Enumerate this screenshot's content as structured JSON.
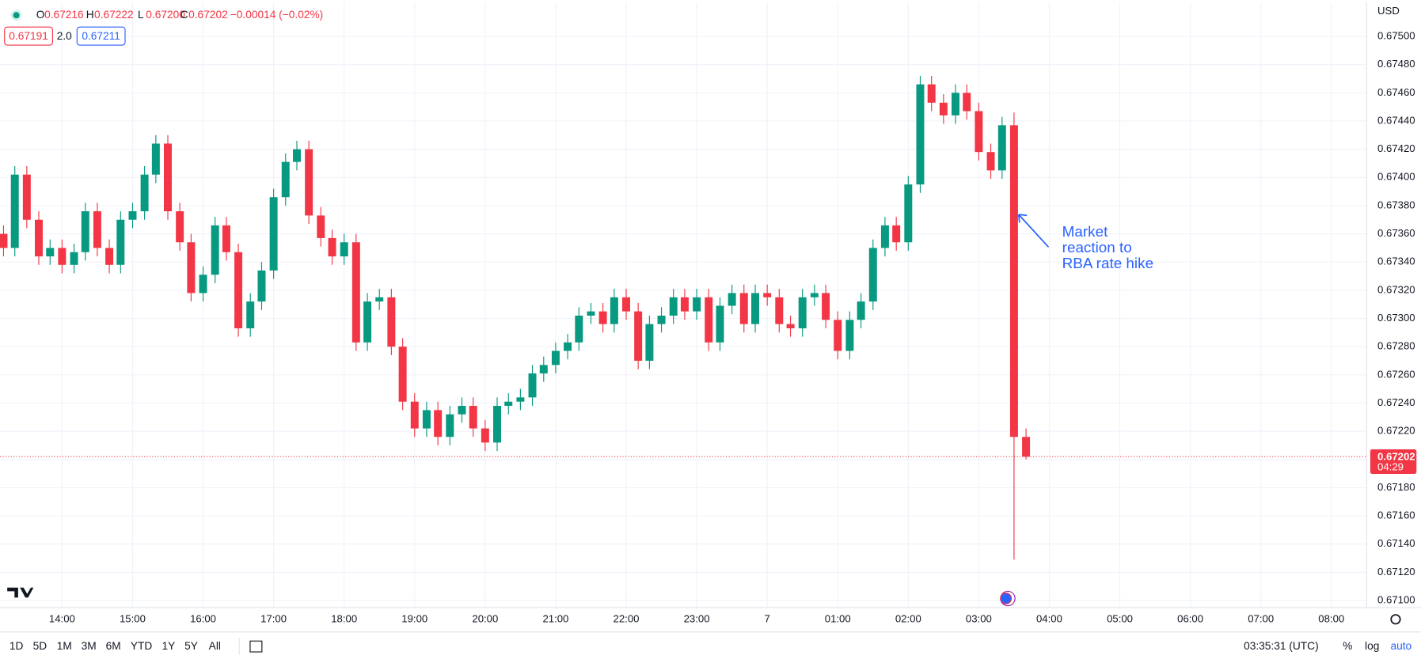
{
  "chart_data": {
    "type": "candlestick",
    "up_color": "#089981",
    "down_color": "#f23645",
    "grid": true,
    "xlim": [
      13.12,
      32.5
    ],
    "ylim": [
      0.67095,
      0.67524
    ],
    "xticks": [
      {
        "value": 14,
        "label": "14:00"
      },
      {
        "value": 15,
        "label": "15:00"
      },
      {
        "value": 16,
        "label": "16:00"
      },
      {
        "value": 17,
        "label": "17:00"
      },
      {
        "value": 18,
        "label": "18:00"
      },
      {
        "value": 19,
        "label": "19:00"
      },
      {
        "value": 20,
        "label": "20:00"
      },
      {
        "value": 21,
        "label": "21:00"
      },
      {
        "value": 22,
        "label": "22:00"
      },
      {
        "value": 23,
        "label": "23:00"
      },
      {
        "value": 24,
        "label": "7"
      },
      {
        "value": 25,
        "label": "01:00"
      },
      {
        "value": 26,
        "label": "02:00"
      },
      {
        "value": 27,
        "label": "03:00"
      },
      {
        "value": 28,
        "label": "04:00"
      },
      {
        "value": 29,
        "label": "05:00"
      },
      {
        "value": 30,
        "label": "06:00"
      },
      {
        "value": 31,
        "label": "07:00"
      },
      {
        "value": 32,
        "label": "08:00"
      }
    ],
    "yticks": [
      {
        "value": 0.671,
        "label": "0.67100"
      },
      {
        "value": 0.6712,
        "label": "0.67120"
      },
      {
        "value": 0.6714,
        "label": "0.67140"
      },
      {
        "value": 0.6716,
        "label": "0.67160"
      },
      {
        "value": 0.6718,
        "label": "0.67180"
      },
      {
        "value": 0.672,
        "label": "0.67200"
      },
      {
        "value": 0.6722,
        "label": "0.67220"
      },
      {
        "value": 0.6724,
        "label": "0.67240"
      },
      {
        "value": 0.6726,
        "label": "0.67260"
      },
      {
        "value": 0.6728,
        "label": "0.67280"
      },
      {
        "value": 0.673,
        "label": "0.67300"
      },
      {
        "value": 0.6732,
        "label": "0.67320"
      },
      {
        "value": 0.6734,
        "label": "0.67340"
      },
      {
        "value": 0.6736,
        "label": "0.67360"
      },
      {
        "value": 0.6738,
        "label": "0.67380"
      },
      {
        "value": 0.674,
        "label": "0.67400"
      },
      {
        "value": 0.6742,
        "label": "0.67420"
      },
      {
        "value": 0.6744,
        "label": "0.67440"
      },
      {
        "value": 0.6746,
        "label": "0.67460"
      },
      {
        "value": 0.6748,
        "label": "0.67480"
      },
      {
        "value": 0.675,
        "label": "0.67500"
      }
    ],
    "x": [
      13.17,
      13.33,
      13.5,
      13.67,
      13.83,
      14,
      14.17,
      14.33,
      14.5,
      14.67,
      14.83,
      15,
      15.17,
      15.33,
      15.5,
      15.67,
      15.83,
      16,
      16.17,
      16.33,
      16.5,
      16.67,
      16.83,
      17,
      17.17,
      17.33,
      17.5,
      17.67,
      17.83,
      18,
      18.17,
      18.33,
      18.5,
      18.67,
      18.83,
      19,
      19.17,
      19.33,
      19.5,
      19.67,
      19.83,
      20,
      20.17,
      20.33,
      20.5,
      20.67,
      20.83,
      21,
      21.17,
      21.33,
      21.5,
      21.67,
      21.83,
      22,
      22.17,
      22.33,
      22.5,
      22.67,
      22.83,
      23,
      23.17,
      23.33,
      23.5,
      23.67,
      23.83,
      24,
      24.17,
      24.33,
      24.5,
      24.67,
      24.83,
      25,
      25.17,
      25.33,
      25.5,
      25.67,
      25.83,
      26,
      26.17,
      26.33,
      26.5,
      26.67,
      26.83,
      27,
      27.17,
      27.33,
      27.5,
      27.67
    ],
    "open": [
      0.6736,
      0.6735,
      0.67402,
      0.6737,
      0.67344,
      0.6735,
      0.67338,
      0.67347,
      0.67376,
      0.6735,
      0.67338,
      0.6737,
      0.67376,
      0.67402,
      0.67424,
      0.67376,
      0.67354,
      0.67318,
      0.67331,
      0.67366,
      0.67347,
      0.67293,
      0.67312,
      0.67334,
      0.67386,
      0.67411,
      0.6742,
      0.67373,
      0.67357,
      0.67344,
      0.67354,
      0.67283,
      0.67312,
      0.67315,
      0.6728,
      0.67241,
      0.67222,
      0.67235,
      0.67216,
      0.67232,
      0.67238,
      0.67222,
      0.67212,
      0.67238,
      0.67241,
      0.67244,
      0.67261,
      0.67267,
      0.67277,
      0.67283,
      0.67302,
      0.67305,
      0.67296,
      0.67315,
      0.67305,
      0.6727,
      0.67296,
      0.67302,
      0.67315,
      0.67305,
      0.67315,
      0.67283,
      0.67309,
      0.67318,
      0.67296,
      0.67318,
      0.67315,
      0.67296,
      0.67293,
      0.67315,
      0.67318,
      0.67299,
      0.67277,
      0.67299,
      0.67312,
      0.6735,
      0.67366,
      0.67354,
      0.67395,
      0.67466,
      0.67453,
      0.67444,
      0.6746,
      0.67447,
      0.67418,
      0.67405,
      0.67437,
      0.67216
    ],
    "high": [
      0.67366,
      0.67408,
      0.67408,
      0.67376,
      0.67356,
      0.67356,
      0.67353,
      0.67382,
      0.67382,
      0.67356,
      0.67376,
      0.67382,
      0.67408,
      0.6743,
      0.6743,
      0.67382,
      0.6736,
      0.67337,
      0.67372,
      0.67372,
      0.67353,
      0.67318,
      0.6734,
      0.67392,
      0.67417,
      0.67426,
      0.67426,
      0.67379,
      0.67363,
      0.6736,
      0.6736,
      0.67318,
      0.67321,
      0.67321,
      0.67286,
      0.67247,
      0.67241,
      0.67241,
      0.67238,
      0.67244,
      0.67244,
      0.67228,
      0.67244,
      0.67247,
      0.6725,
      0.67267,
      0.67273,
      0.67283,
      0.67289,
      0.67308,
      0.67311,
      0.67311,
      0.67321,
      0.67321,
      0.67311,
      0.67302,
      0.67308,
      0.67321,
      0.67321,
      0.67321,
      0.67321,
      0.67315,
      0.67324,
      0.67324,
      0.67324,
      0.67324,
      0.67321,
      0.67302,
      0.67321,
      0.67324,
      0.67324,
      0.67305,
      0.67305,
      0.67318,
      0.67356,
      0.67372,
      0.67372,
      0.67401,
      0.67472,
      0.67472,
      0.67459,
      0.67466,
      0.67466,
      0.67453,
      0.67424,
      0.67443,
      0.67446,
      0.67222
    ],
    "low": [
      0.67344,
      0.67344,
      0.67364,
      0.67338,
      0.67338,
      0.67332,
      0.67332,
      0.67341,
      0.67344,
      0.67332,
      0.67332,
      0.67364,
      0.6737,
      0.67396,
      0.6737,
      0.67348,
      0.67312,
      0.67312,
      0.67325,
      0.67341,
      0.67287,
      0.67287,
      0.67306,
      0.67328,
      0.6738,
      0.67405,
      0.67367,
      0.67351,
      0.67338,
      0.67338,
      0.67277,
      0.67277,
      0.67306,
      0.67274,
      0.67235,
      0.67216,
      0.67216,
      0.6721,
      0.6721,
      0.67226,
      0.67216,
      0.67206,
      0.67206,
      0.67232,
      0.67235,
      0.67238,
      0.67255,
      0.67261,
      0.67271,
      0.67277,
      0.67296,
      0.6729,
      0.6729,
      0.67299,
      0.67264,
      0.67264,
      0.6729,
      0.67296,
      0.67299,
      0.67299,
      0.67277,
      0.67277,
      0.67303,
      0.6729,
      0.6729,
      0.67309,
      0.6729,
      0.67287,
      0.67287,
      0.67309,
      0.67293,
      0.67271,
      0.67271,
      0.67293,
      0.67306,
      0.67344,
      0.67348,
      0.67348,
      0.67389,
      0.67447,
      0.67438,
      0.67438,
      0.67441,
      0.67412,
      0.67399,
      0.67399,
      0.67129,
      0.672
    ],
    "close": [
      0.6735,
      0.67402,
      0.6737,
      0.67344,
      0.6735,
      0.67338,
      0.67347,
      0.67376,
      0.6735,
      0.67338,
      0.6737,
      0.67376,
      0.67402,
      0.67424,
      0.67376,
      0.67354,
      0.67318,
      0.67331,
      0.67366,
      0.67347,
      0.67293,
      0.67312,
      0.67334,
      0.67386,
      0.67411,
      0.6742,
      0.67373,
      0.67357,
      0.67344,
      0.67354,
      0.67283,
      0.67312,
      0.67315,
      0.6728,
      0.67241,
      0.67222,
      0.67235,
      0.67216,
      0.67232,
      0.67238,
      0.67222,
      0.67212,
      0.67238,
      0.67241,
      0.67244,
      0.67261,
      0.67267,
      0.67277,
      0.67283,
      0.67302,
      0.67305,
      0.67296,
      0.67315,
      0.67305,
      0.6727,
      0.67296,
      0.67302,
      0.67315,
      0.67305,
      0.67315,
      0.67283,
      0.67309,
      0.67318,
      0.67296,
      0.67318,
      0.67315,
      0.67296,
      0.67293,
      0.67315,
      0.67318,
      0.67299,
      0.67277,
      0.67299,
      0.67312,
      0.6735,
      0.67366,
      0.67354,
      0.67395,
      0.67466,
      0.67453,
      0.67444,
      0.6746,
      0.67447,
      0.67418,
      0.67405,
      0.67437,
      0.67216,
      0.67202
    ],
    "annotation": [
      "Market",
      "reaction to",
      "RBA rate hike"
    ],
    "currency": "USD",
    "countdown": "04:29"
  },
  "header": {
    "ohlc": [
      {
        "letter": "O",
        "value": "0.67216"
      },
      {
        "letter": "H",
        "value": "0.67222"
      },
      {
        "letter": "L",
        "value": "0.67200"
      },
      {
        "letter": "C",
        "value": "0.67202"
      }
    ],
    "change": "−0.00014 (−0.02%)",
    "bid": 0.67191,
    "spread": "2.0",
    "ask": 0.67211
  },
  "toolbar": {
    "ranges": [
      "1D",
      "5D",
      "1M",
      "3M",
      "6M",
      "YTD",
      "1Y",
      "5Y",
      "All"
    ],
    "clock": "03:35:31 (UTC)",
    "options": [
      "%",
      "log",
      "auto"
    ]
  }
}
